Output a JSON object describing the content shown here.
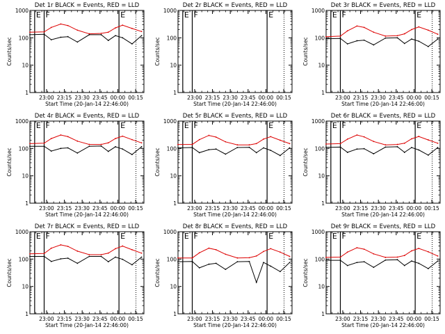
{
  "figure": {
    "rows": 3,
    "cols": 3
  },
  "chart_data": [
    {
      "type": "line",
      "title": "Det 1r BLACK = Events, RED = LLD",
      "xlabel": "Start Time (20-Jan-14 22:46:00)",
      "ylabel": "Counts/sec",
      "y_scale": "log",
      "ylim": [
        1,
        1000
      ],
      "x_ticks": [
        "23:00",
        "23:15",
        "23:30",
        "23:45",
        "00:00",
        "00:15"
      ],
      "y_ticks": [
        "1",
        "10",
        "100",
        "1000"
      ],
      "markers": [
        {
          "label": "E",
          "x": "22:50"
        },
        {
          "label": "F",
          "x": "22:58"
        },
        {
          "label": "E",
          "x": "00:01"
        }
      ],
      "series": [
        {
          "name": "LLD",
          "color": "#dd0000",
          "x": [
            "22:46",
            "22:58",
            "23:04",
            "23:12",
            "23:18",
            "23:26",
            "23:36",
            "23:46",
            "23:52",
            "23:58",
            "00:04",
            "00:12",
            "00:20"
          ],
          "values": [
            160,
            165,
            240,
            320,
            280,
            190,
            140,
            145,
            160,
            230,
            290,
            220,
            170
          ]
        },
        {
          "name": "Events",
          "color": "#000000",
          "x": [
            "22:46",
            "22:58",
            "23:04",
            "23:12",
            "23:18",
            "23:26",
            "23:36",
            "23:46",
            "23:52",
            "23:58",
            "00:04",
            "00:12",
            "00:20"
          ],
          "values": [
            130,
            135,
            85,
            105,
            110,
            70,
            130,
            130,
            80,
            120,
            100,
            60,
            120
          ]
        }
      ]
    },
    {
      "type": "line",
      "title": "Det 2r BLACK = Events, RED = LLD",
      "xlabel": "Start Time (20-Jan-14 22:46:00)",
      "ylabel": "Counts/sec",
      "y_scale": "log",
      "ylim": [
        1,
        1000
      ],
      "x_ticks": [
        "23:00",
        "23:15",
        "23:30",
        "23:45",
        "00:00",
        "00:15"
      ],
      "y_ticks": [
        "1",
        "10",
        "100",
        "1000"
      ],
      "markers": [
        {
          "label": "E",
          "x": "22:50"
        },
        {
          "label": "F",
          "x": "22:58"
        },
        {
          "label": "E",
          "x": "00:01"
        }
      ],
      "series": []
    },
    {
      "type": "line",
      "title": "Det 3r BLACK = Events, RED = LLD",
      "xlabel": "Start Time (20-Jan-14 22:46:00)",
      "ylabel": "Counts/sec",
      "y_scale": "log",
      "ylim": [
        1,
        1000
      ],
      "x_ticks": [
        "23:00",
        "23:15",
        "23:30",
        "23:45",
        "00:00",
        "00:15"
      ],
      "y_ticks": [
        "1",
        "10",
        "100",
        "1000"
      ],
      "markers": [
        {
          "label": "E",
          "x": "22:50"
        },
        {
          "label": "F",
          "x": "22:58"
        },
        {
          "label": "E",
          "x": "00:01"
        }
      ],
      "series": [
        {
          "name": "LLD",
          "color": "#dd0000",
          "x": [
            "22:46",
            "22:58",
            "23:04",
            "23:12",
            "23:18",
            "23:26",
            "23:36",
            "23:46",
            "23:52",
            "23:58",
            "00:04",
            "00:12",
            "00:20"
          ],
          "values": [
            110,
            115,
            180,
            270,
            240,
            160,
            115,
            120,
            140,
            200,
            250,
            190,
            135
          ]
        },
        {
          "name": "Events",
          "color": "#000000",
          "x": [
            "22:46",
            "22:58",
            "23:04",
            "23:12",
            "23:18",
            "23:26",
            "23:36",
            "23:46",
            "23:52",
            "23:58",
            "00:04",
            "00:12",
            "00:20"
          ],
          "values": [
            92,
            95,
            60,
            78,
            82,
            55,
            98,
            100,
            62,
            90,
            75,
            48,
            90
          ]
        }
      ]
    },
    {
      "type": "line",
      "title": "Det 4r BLACK = Events, RED = LLD",
      "xlabel": "Start Time (20-Jan-14 22:46:00)",
      "ylabel": "Counts/sec",
      "y_scale": "log",
      "ylim": [
        1,
        1000
      ],
      "x_ticks": [
        "23:00",
        "23:15",
        "23:30",
        "23:45",
        "00:00",
        "00:15"
      ],
      "y_ticks": [
        "1",
        "10",
        "100",
        "1000"
      ],
      "markers": [
        {
          "label": "E",
          "x": "22:50"
        },
        {
          "label": "F",
          "x": "22:58"
        },
        {
          "label": "E",
          "x": "00:01"
        }
      ],
      "series": [
        {
          "name": "LLD",
          "color": "#dd0000",
          "x": [
            "22:46",
            "22:58",
            "23:04",
            "23:12",
            "23:18",
            "23:26",
            "23:36",
            "23:46",
            "23:52",
            "23:58",
            "00:04",
            "00:12",
            "00:20"
          ],
          "values": [
            150,
            155,
            230,
            310,
            270,
            185,
            140,
            140,
            160,
            230,
            280,
            210,
            160
          ]
        },
        {
          "name": "Events",
          "color": "#000000",
          "x": [
            "22:46",
            "22:58",
            "23:04",
            "23:12",
            "23:18",
            "23:26",
            "23:36",
            "23:46",
            "23:52",
            "23:58",
            "00:04",
            "00:12",
            "00:20"
          ],
          "values": [
            120,
            120,
            80,
            100,
            105,
            68,
            120,
            122,
            78,
            115,
            95,
            60,
            115
          ]
        }
      ]
    },
    {
      "type": "line",
      "title": "Det 5r BLACK = Events, RED = LLD",
      "xlabel": "Start Time (20-Jan-14 22:46:00)",
      "ylabel": "Counts/sec",
      "y_scale": "log",
      "ylim": [
        1,
        1000
      ],
      "x_ticks": [
        "23:00",
        "23:15",
        "23:30",
        "23:45",
        "00:00",
        "00:15"
      ],
      "y_ticks": [
        "1",
        "10",
        "100",
        "1000"
      ],
      "markers": [
        {
          "label": "E",
          "x": "22:50"
        },
        {
          "label": "F",
          "x": "22:58"
        },
        {
          "label": "E",
          "x": "00:01"
        }
      ],
      "series": [
        {
          "name": "LLD",
          "color": "#dd0000",
          "x": [
            "22:46",
            "22:58",
            "23:04",
            "23:12",
            "23:18",
            "23:26",
            "23:36",
            "23:46",
            "23:52",
            "23:58",
            "00:04",
            "00:12",
            "00:20"
          ],
          "values": [
            140,
            140,
            210,
            300,
            260,
            175,
            135,
            135,
            150,
            220,
            270,
            200,
            150
          ]
        },
        {
          "name": "Events",
          "color": "#000000",
          "x": [
            "22:46",
            "22:58",
            "23:04",
            "23:12",
            "23:18",
            "23:26",
            "23:36",
            "23:46",
            "23:52",
            "23:58",
            "00:04",
            "00:12",
            "00:20"
          ],
          "values": [
            105,
            108,
            70,
            90,
            95,
            62,
            108,
            110,
            70,
            105,
            85,
            55,
            105
          ]
        }
      ]
    },
    {
      "type": "line",
      "title": "Det 6r BLACK = Events, RED = LLD",
      "xlabel": "Start Time (20-Jan-14 22:46:00)",
      "ylabel": "Counts/sec",
      "y_scale": "log",
      "ylim": [
        1,
        1000
      ],
      "x_ticks": [
        "23:00",
        "23:15",
        "23:30",
        "23:45",
        "00:00",
        "00:15"
      ],
      "y_ticks": [
        "1",
        "10",
        "100",
        "1000"
      ],
      "markers": [
        {
          "label": "E",
          "x": "22:50"
        },
        {
          "label": "F",
          "x": "22:58"
        },
        {
          "label": "E",
          "x": "00:01"
        }
      ],
      "series": [
        {
          "name": "LLD",
          "color": "#dd0000",
          "x": [
            "22:46",
            "22:58",
            "23:04",
            "23:12",
            "23:18",
            "23:26",
            "23:36",
            "23:46",
            "23:52",
            "23:58",
            "00:04",
            "00:12",
            "00:20"
          ],
          "values": [
            145,
            150,
            220,
            310,
            265,
            180,
            135,
            140,
            155,
            225,
            275,
            205,
            155
          ]
        },
        {
          "name": "Events",
          "color": "#000000",
          "x": [
            "22:46",
            "22:58",
            "23:04",
            "23:12",
            "23:18",
            "23:26",
            "23:36",
            "23:46",
            "23:52",
            "23:58",
            "00:04",
            "00:12",
            "00:20"
          ],
          "values": [
            110,
            112,
            72,
            95,
            98,
            64,
            112,
            115,
            72,
            108,
            88,
            57,
            108
          ]
        }
      ]
    },
    {
      "type": "line",
      "title": "Det 7r BLACK = Events, RED = LLD",
      "xlabel": "Start Time (20-Jan-14 22:46:00)",
      "ylabel": "Counts/sec",
      "y_scale": "log",
      "ylim": [
        1,
        1000
      ],
      "x_ticks": [
        "23:00",
        "23:15",
        "23:30",
        "23:45",
        "00:00",
        "00:15"
      ],
      "y_ticks": [
        "1",
        "10",
        "100",
        "1000"
      ],
      "markers": [
        {
          "label": "E",
          "x": "22:50"
        },
        {
          "label": "F",
          "x": "22:58"
        },
        {
          "label": "E",
          "x": "00:01"
        }
      ],
      "series": [
        {
          "name": "LLD",
          "color": "#dd0000",
          "x": [
            "22:46",
            "22:58",
            "23:04",
            "23:12",
            "23:18",
            "23:26",
            "23:36",
            "23:46",
            "23:52",
            "23:58",
            "00:04",
            "00:12",
            "00:20"
          ],
          "values": [
            155,
            160,
            250,
            330,
            290,
            195,
            145,
            145,
            165,
            240,
            300,
            220,
            165
          ]
        },
        {
          "name": "Events",
          "color": "#000000",
          "x": [
            "22:46",
            "22:58",
            "23:04",
            "23:12",
            "23:18",
            "23:26",
            "23:36",
            "23:46",
            "23:52",
            "23:58",
            "00:04",
            "00:12",
            "00:20"
          ],
          "values": [
            125,
            125,
            82,
            102,
            108,
            70,
            125,
            125,
            80,
            118,
            98,
            62,
            118
          ]
        }
      ]
    },
    {
      "type": "line",
      "title": "Det 8r BLACK = Events, RED = LLD",
      "xlabel": "Start Time (20-Jan-14 22:46:00)",
      "ylabel": "Counts/sec",
      "y_scale": "log",
      "ylim": [
        1,
        1000
      ],
      "x_ticks": [
        "23:00",
        "23:15",
        "23:30",
        "23:45",
        "00:00",
        "00:15"
      ],
      "y_ticks": [
        "1",
        "10",
        "100",
        "1000"
      ],
      "markers": [
        {
          "label": "E",
          "x": "22:50"
        },
        {
          "label": "F",
          "x": "22:58"
        },
        {
          "label": "E",
          "x": "00:01"
        }
      ],
      "series": [
        {
          "name": "LLD",
          "color": "#dd0000",
          "x": [
            "22:46",
            "22:58",
            "23:04",
            "23:12",
            "23:18",
            "23:26",
            "23:36",
            "23:46",
            "23:52",
            "23:58",
            "00:04",
            "00:12",
            "00:20"
          ],
          "values": [
            110,
            110,
            170,
            250,
            220,
            150,
            110,
            112,
            130,
            190,
            240,
            180,
            125
          ]
        },
        {
          "name": "Events",
          "color": "#000000",
          "x": [
            "22:46",
            "22:58",
            "23:04",
            "23:12",
            "23:18",
            "23:26",
            "23:36",
            "23:46",
            "23:52",
            "23:58",
            "00:04",
            "00:12",
            "00:20"
          ],
          "values": [
            80,
            82,
            48,
            65,
            70,
            42,
            80,
            82,
            14,
            75,
            55,
            35,
            75
          ]
        }
      ]
    },
    {
      "type": "line",
      "title": "Det 9r BLACK = Events, RED = LLD",
      "xlabel": "Start Time (20-Jan-14 22:46:00)",
      "ylabel": "Counts/sec",
      "y_scale": "log",
      "ylim": [
        1,
        1000
      ],
      "x_ticks": [
        "23:00",
        "23:15",
        "23:30",
        "23:45",
        "00:00",
        "00:15"
      ],
      "y_ticks": [
        "1",
        "10",
        "100",
        "1000"
      ],
      "markers": [
        {
          "label": "E",
          "x": "22:50"
        },
        {
          "label": "F",
          "x": "22:58"
        },
        {
          "label": "E",
          "x": "00:01"
        }
      ],
      "series": [
        {
          "name": "LLD",
          "color": "#dd0000",
          "x": [
            "22:46",
            "22:58",
            "23:04",
            "23:12",
            "23:18",
            "23:26",
            "23:36",
            "23:46",
            "23:52",
            "23:58",
            "00:04",
            "00:12",
            "00:20"
          ],
          "values": [
            115,
            118,
            180,
            260,
            230,
            155,
            115,
            118,
            135,
            200,
            245,
            185,
            130
          ]
        },
        {
          "name": "Events",
          "color": "#000000",
          "x": [
            "22:46",
            "22:58",
            "23:04",
            "23:12",
            "23:18",
            "23:26",
            "23:36",
            "23:46",
            "23:52",
            "23:58",
            "00:04",
            "00:12",
            "00:20"
          ],
          "values": [
            90,
            90,
            58,
            75,
            80,
            50,
            92,
            95,
            58,
            85,
            70,
            45,
            85
          ]
        }
      ]
    }
  ]
}
